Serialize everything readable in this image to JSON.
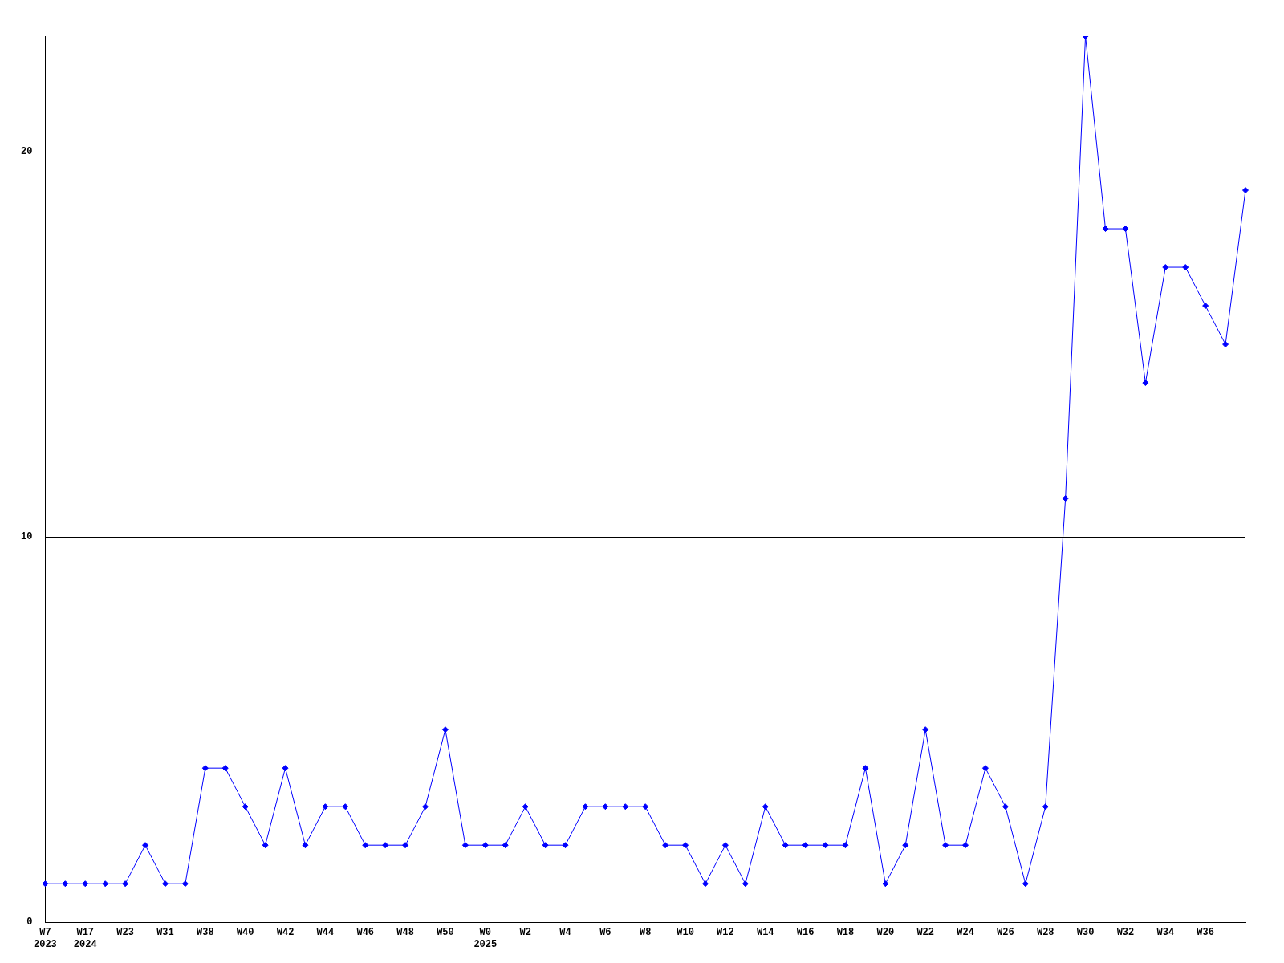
{
  "chart_data": {
    "type": "line",
    "categories": [
      "W7\n2023",
      null,
      "W17\n2024",
      null,
      "W23",
      null,
      "W31",
      null,
      "W38",
      null,
      "W40",
      null,
      "W42",
      null,
      "W44",
      null,
      "W46",
      null,
      "W48",
      null,
      "W50",
      null,
      "W0\n2025",
      null,
      "W2",
      null,
      "W4",
      null,
      "W6",
      null,
      "W8",
      null,
      "W10",
      null,
      "W12",
      null,
      "W14",
      null,
      "W16",
      null,
      "W18",
      null,
      "W20",
      null,
      "W22",
      null,
      "W24",
      null,
      "W26",
      null,
      "W28",
      null,
      "W30",
      null,
      "W32",
      null,
      "W34",
      null,
      "W36",
      null,
      null
    ],
    "series": [
      {
        "color": "#0000ff",
        "values": [
          1,
          1,
          1,
          1,
          1,
          2,
          1,
          1,
          4,
          4,
          3,
          2,
          4,
          2,
          3,
          3,
          2,
          2,
          2,
          3,
          5,
          2,
          2,
          2,
          3,
          2,
          2,
          3,
          3,
          3,
          3,
          2,
          2,
          1,
          2,
          1,
          3,
          2,
          2,
          2,
          2,
          4,
          1,
          2,
          5,
          2,
          2,
          4,
          3,
          1,
          3,
          11,
          23,
          18,
          18,
          14,
          17,
          17,
          16,
          15,
          19
        ]
      }
    ],
    "ylim": [
      0,
      23
    ],
    "yticks": [
      0,
      10,
      20
    ],
    "grid": "y",
    "marker": "diamond",
    "line_style": "solid",
    "legend": false
  }
}
